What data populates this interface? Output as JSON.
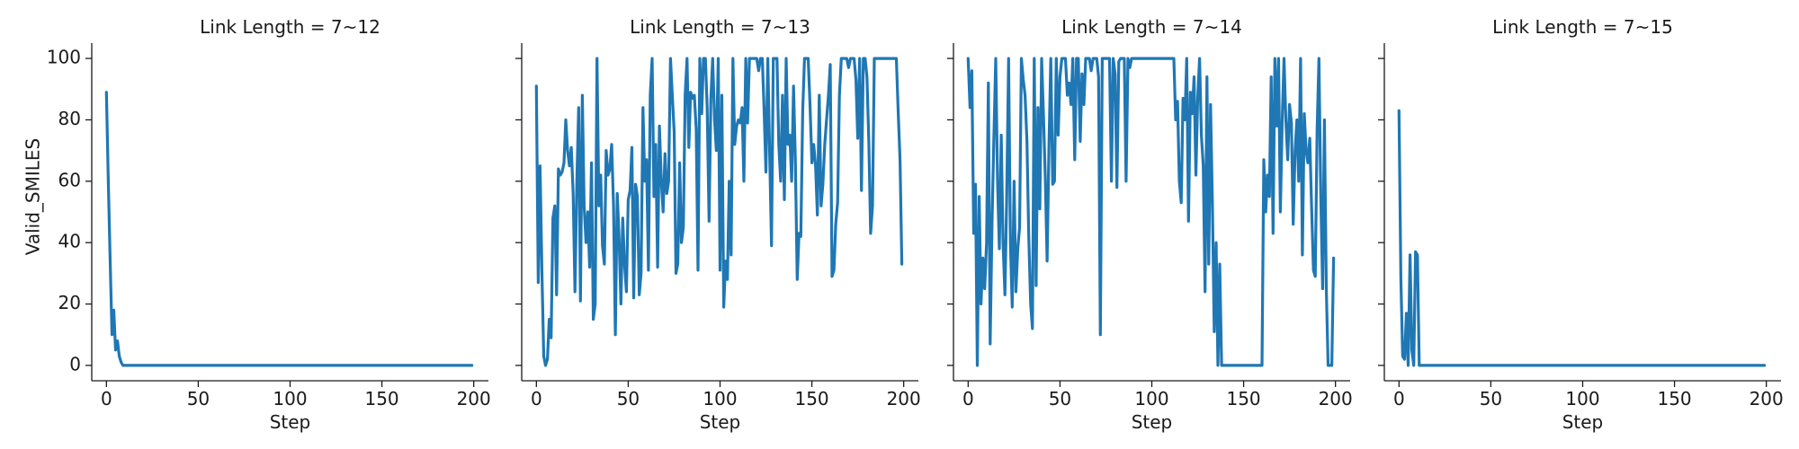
{
  "chart_data": {
    "type": "line",
    "layout": "facet-row",
    "xlabel": "Step",
    "ylabel": "Valid_SMILES",
    "xlim": [
      -8,
      208
    ],
    "ylim": [
      -5,
      105
    ],
    "xticks": [
      0,
      50,
      100,
      150,
      200
    ],
    "yticks": [
      0,
      20,
      40,
      60,
      80,
      100
    ],
    "sharey": true,
    "grid": false,
    "line_color": "#1f77b4",
    "panels": [
      {
        "title": "Link Length = 7~12",
        "series": [
          {
            "x": [
              0,
              1,
              2,
              3,
              4,
              5,
              6,
              7,
              8,
              9,
              10,
              20,
              40,
              60,
              80,
              100,
              120,
              140,
              160,
              180,
              199
            ],
            "y": [
              89,
              60,
              35,
              10,
              18,
              5,
              8,
              3,
              1,
              0,
              0,
              0,
              0,
              0,
              0,
              0,
              0,
              0,
              0,
              0,
              0
            ]
          }
        ]
      },
      {
        "title": "Link Length = 7~13",
        "series": [
          {
            "x": [
              0,
              1,
              2,
              3,
              4,
              5,
              6,
              7,
              8,
              9,
              10,
              11,
              12,
              13,
              14,
              15,
              16,
              17,
              18,
              19,
              20,
              21,
              22,
              23,
              24,
              25,
              26,
              27,
              28,
              29,
              30,
              31,
              32,
              33,
              34,
              35,
              36,
              37,
              38,
              39,
              40,
              41,
              42,
              43,
              44,
              45,
              46,
              47,
              48,
              49,
              50,
              51,
              52,
              53,
              54,
              55,
              56,
              57,
              58,
              59,
              60,
              61,
              62,
              63,
              64,
              65,
              66,
              67,
              68,
              69,
              70,
              71,
              72,
              73,
              74,
              75,
              76,
              77,
              78,
              79,
              80,
              81,
              82,
              83,
              84,
              85,
              86,
              87,
              88,
              89,
              90,
              91,
              92,
              93,
              94,
              95,
              96,
              97,
              98,
              99,
              100,
              101,
              102,
              103,
              104,
              105,
              106,
              107,
              108,
              109,
              110,
              111,
              112,
              113,
              114,
              115,
              116,
              117,
              118,
              119,
              120,
              121,
              122,
              123,
              124,
              125,
              126,
              127,
              128,
              129,
              130,
              131,
              132,
              133,
              134,
              135,
              136,
              137,
              138,
              139,
              140,
              141,
              142,
              143,
              144,
              145,
              146,
              147,
              148,
              149,
              150,
              151,
              152,
              153,
              154,
              155,
              156,
              157,
              158,
              159,
              160,
              161,
              162,
              163,
              164,
              165,
              166,
              167,
              168,
              169,
              170,
              171,
              172,
              173,
              174,
              175,
              176,
              177,
              178,
              179,
              180,
              181,
              182,
              183,
              184,
              185,
              186,
              187,
              188,
              189,
              190,
              191,
              192,
              193,
              194,
              195,
              196,
              197,
              198,
              199
            ],
            "y": [
              91,
              27,
              65,
              30,
              3,
              0,
              2,
              15,
              9,
              48,
              52,
              23,
              64,
              62,
              63,
              66,
              80,
              70,
              65,
              71,
              56,
              24,
              60,
              84,
              21,
              88,
              52,
              40,
              50,
              32,
              66,
              15,
              20,
              100,
              52,
              62,
              39,
              33,
              70,
              62,
              64,
              72,
              52,
              10,
              56,
              42,
              20,
              48,
              33,
              24,
              54,
              57,
              71,
              22,
              59,
              55,
              23,
              30,
              84,
              60,
              67,
              31,
              88,
              100,
              55,
              72,
              32,
              78,
              60,
              50,
              69,
              56,
              60,
              100,
              88,
              76,
              30,
              33,
              66,
              40,
              45,
              88,
              100,
              71,
              89,
              87,
              88,
              77,
              31,
              100,
              82,
              100,
              100,
              84,
              47,
              87,
              100,
              80,
              70,
              100,
              31,
              88,
              19,
              34,
              28,
              60,
              36,
              100,
              72,
              78,
              80,
              79,
              84,
              60,
              100,
              79,
              100,
              100,
              100,
              100,
              100,
              96,
              100,
              100,
              83,
              63,
              100,
              70,
              39,
              100,
              100,
              100,
              72,
              60,
              88,
              54,
              100,
              72,
              75,
              60,
              91,
              67,
              28,
              43,
              42,
              83,
              100,
              100,
              100,
              85,
              66,
              72,
              65,
              49,
              88,
              52,
              59,
              72,
              80,
              88,
              98,
              29,
              31,
              46,
              53,
              88,
              100,
              100,
              100,
              100,
              97,
              100,
              100,
              100,
              93,
              74,
              100,
              57,
              100,
              100,
              94,
              73,
              43,
              52,
              100,
              100,
              100,
              100,
              100,
              100,
              100,
              100,
              100,
              100,
              100,
              100,
              100,
              83,
              67,
              33
            ]
          }
        ]
      },
      {
        "title": "Link Length = 7~14",
        "series": [
          {
            "x": [
              0,
              1,
              2,
              3,
              4,
              5,
              6,
              7,
              8,
              9,
              10,
              11,
              12,
              13,
              14,
              15,
              16,
              17,
              18,
              19,
              20,
              21,
              22,
              23,
              24,
              25,
              26,
              27,
              28,
              29,
              30,
              31,
              32,
              33,
              34,
              35,
              36,
              37,
              38,
              39,
              40,
              41,
              42,
              43,
              44,
              45,
              46,
              47,
              48,
              49,
              50,
              51,
              52,
              53,
              54,
              55,
              56,
              57,
              58,
              59,
              60,
              61,
              62,
              63,
              64,
              65,
              66,
              67,
              68,
              69,
              70,
              71,
              72,
              73,
              74,
              75,
              76,
              77,
              78,
              79,
              80,
              81,
              82,
              83,
              84,
              85,
              86,
              87,
              88,
              89,
              90,
              91,
              92,
              93,
              94,
              95,
              96,
              97,
              98,
              99,
              100,
              101,
              102,
              103,
              104,
              105,
              106,
              107,
              108,
              109,
              110,
              111,
              112,
              113,
              114,
              115,
              116,
              117,
              118,
              119,
              120,
              121,
              122,
              123,
              124,
              125,
              126,
              127,
              128,
              129,
              130,
              131,
              132,
              133,
              134,
              135,
              136,
              137,
              138,
              139,
              140,
              150,
              159,
              160,
              161,
              162,
              163,
              164,
              165,
              166,
              167,
              168,
              169,
              170,
              171,
              172,
              173,
              174,
              175,
              176,
              177,
              178,
              179,
              180,
              181,
              182,
              183,
              184,
              185,
              186,
              187,
              188,
              189,
              190,
              191,
              192,
              193,
              194,
              195,
              196,
              197,
              198,
              199
            ],
            "y": [
              100,
              84,
              96,
              43,
              59,
              0,
              55,
              20,
              35,
              25,
              40,
              92,
              7,
              47,
              74,
              100,
              60,
              38,
              75,
              40,
              23,
              55,
              100,
              40,
              19,
              60,
              24,
              38,
              45,
              100,
              93,
              88,
              73,
              42,
              20,
              12,
              100,
              26,
              84,
              51,
              100,
              82,
              61,
              34,
              72,
              100,
              59,
              60,
              100,
              75,
              94,
              100,
              100,
              100,
              88,
              92,
              85,
              100,
              67,
              100,
              100,
              73,
              95,
              85,
              100,
              100,
              100,
              96,
              100,
              100,
              100,
              94,
              10,
              100,
              100,
              100,
              100,
              100,
              60,
              100,
              95,
              58,
              99,
              100,
              100,
              100,
              60,
              100,
              97,
              100,
              100,
              100,
              100,
              100,
              100,
              100,
              100,
              100,
              100,
              100,
              100,
              100,
              100,
              100,
              100,
              100,
              100,
              100,
              100,
              100,
              100,
              100,
              100,
              80,
              86,
              60,
              53,
              87,
              80,
              100,
              47,
              89,
              82,
              94,
              62,
              87,
              100,
              75,
              65,
              24,
              94,
              33,
              85,
              52,
              11,
              40,
              0,
              33,
              0,
              0,
              0,
              0,
              0,
              0,
              67,
              50,
              62,
              55,
              94,
              43,
              100,
              78,
              100,
              50,
              80,
              100,
              80,
              67,
              85,
              79,
              46,
              70,
              80,
              60,
              100,
              36,
              82,
              70,
              66,
              74,
              52,
              31,
              29,
              77,
              100,
              56,
              25,
              80,
              25,
              0,
              0,
              0,
              35
            ]
          }
        ]
      },
      {
        "title": "Link Length = 7~15",
        "series": [
          {
            "x": [
              0,
              1,
              2,
              3,
              4,
              5,
              6,
              7,
              8,
              9,
              10,
              11,
              12,
              20,
              40,
              60,
              80,
              100,
              120,
              140,
              160,
              180,
              199
            ],
            "y": [
              83,
              28,
              3,
              2,
              17,
              0,
              36,
              5,
              0,
              37,
              36,
              0,
              0,
              0,
              0,
              0,
              0,
              0,
              0,
              0,
              0,
              0,
              0
            ]
          }
        ]
      }
    ]
  }
}
